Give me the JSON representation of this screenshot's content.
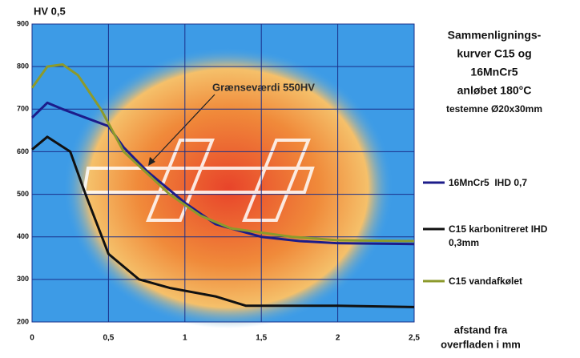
{
  "chart_data": {
    "type": "line",
    "title": [
      "Sammenlignings-",
      "kurver C15 og",
      "16MnCr5",
      "anløbet 180°C",
      "testemne Ø20x30mm"
    ],
    "y_label": "HV 0,5",
    "x_label": [
      "afstand fra",
      "overfladen i mm"
    ],
    "annotation": "Grænseværdi 550HV",
    "xlim": [
      0,
      2.5
    ],
    "ylim": [
      200,
      900
    ],
    "xticks": [
      0,
      {
        "value": 0.5,
        "label": "0,5"
      },
      1,
      {
        "value": 1.5,
        "label": "1,5"
      },
      2,
      {
        "value": 2.5,
        "label": "2,5"
      }
    ],
    "yticks": [
      200,
      300,
      400,
      500,
      600,
      700,
      800,
      900
    ],
    "grid": true,
    "series": [
      {
        "name": "16MnCr5  IHD 0,7",
        "color": "#1c1c8a",
        "x": [
          0,
          0.1,
          0.2,
          0.35,
          0.5,
          0.6,
          0.75,
          1.0,
          1.2,
          1.5,
          1.75,
          2.0,
          2.5
        ],
        "values": [
          680,
          715,
          700,
          680,
          660,
          610,
          555,
          480,
          430,
          400,
          390,
          385,
          383
        ]
      },
      {
        "name": "C15 karbonitreret IHD 0,3mm",
        "color": "#111111",
        "x": [
          0,
          0.1,
          0.25,
          0.35,
          0.5,
          0.7,
          0.9,
          1.2,
          1.4,
          2.0,
          2.5
        ],
        "values": [
          605,
          635,
          600,
          500,
          360,
          300,
          280,
          260,
          238,
          238,
          235
        ]
      },
      {
        "name": "C15 vandafkølet",
        "color": "#8c9a2c",
        "x": [
          0,
          0.1,
          0.2,
          0.3,
          0.45,
          0.6,
          0.72,
          0.9,
          1.1,
          1.3,
          1.7,
          2.0,
          2.5
        ],
        "values": [
          750,
          800,
          805,
          780,
          700,
          600,
          560,
          500,
          450,
          420,
          400,
          392,
          390
        ]
      }
    ]
  }
}
